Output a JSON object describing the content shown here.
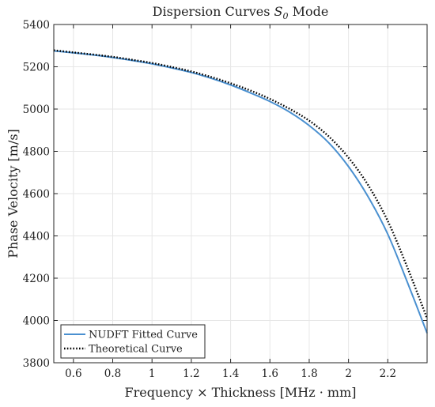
{
  "chart_data": {
    "type": "line",
    "title": "Dispersion Curves S0 Mode",
    "title_parts": {
      "prefix": "Dispersion Curves ",
      "symbol": "S",
      "subscript": "0",
      "suffix": " Mode"
    },
    "xlabel": "Frequency × Thickness [MHz · mm]",
    "ylabel": "Phase Velocity [m/s]",
    "xlim": [
      0.5,
      2.4
    ],
    "ylim": [
      3800,
      5400
    ],
    "xticks": [
      0.6,
      0.8,
      1,
      1.2,
      1.4,
      1.6,
      1.8,
      2,
      2.2
    ],
    "xtick_labels": [
      "0.6",
      "0.8",
      "1",
      "1.2",
      "1.4",
      "1.6",
      "1.8",
      "2",
      "2.2"
    ],
    "yticks": [
      3800,
      4000,
      4200,
      4400,
      4600,
      4800,
      5000,
      5200,
      5400
    ],
    "ytick_labels": [
      "3800",
      "4000",
      "4200",
      "4400",
      "4600",
      "4800",
      "5000",
      "5200",
      "5400"
    ],
    "grid": true,
    "legend_position": "bottom-left",
    "series": [
      {
        "name": "NUDFT Fitted Curve",
        "color": "#4a90d0",
        "style": "solid",
        "x": [
          0.5,
          0.6,
          0.7,
          0.8,
          0.9,
          1.0,
          1.1,
          1.2,
          1.3,
          1.4,
          1.5,
          1.6,
          1.7,
          1.8,
          1.9,
          2.0,
          2.1,
          2.2,
          2.3,
          2.4
        ],
        "values": [
          5275,
          5266,
          5256,
          5244,
          5230,
          5214,
          5195,
          5173,
          5146,
          5114,
          5077,
          5036,
          4986,
          4922,
          4840,
          4728,
          4585,
          4408,
          4180,
          3940
        ]
      },
      {
        "name": "Theoretical Curve",
        "color": "#000000",
        "style": "dotted",
        "x": [
          0.5,
          0.6,
          0.7,
          0.8,
          0.9,
          1.0,
          1.1,
          1.2,
          1.3,
          1.4,
          1.5,
          1.6,
          1.7,
          1.8,
          1.9,
          2.0,
          2.1,
          2.2,
          2.3,
          2.4
        ],
        "values": [
          5278,
          5268,
          5258,
          5247,
          5233,
          5218,
          5199,
          5178,
          5152,
          5122,
          5088,
          5048,
          5001,
          4945,
          4870,
          4770,
          4640,
          4470,
          4250,
          4010
        ]
      }
    ]
  }
}
